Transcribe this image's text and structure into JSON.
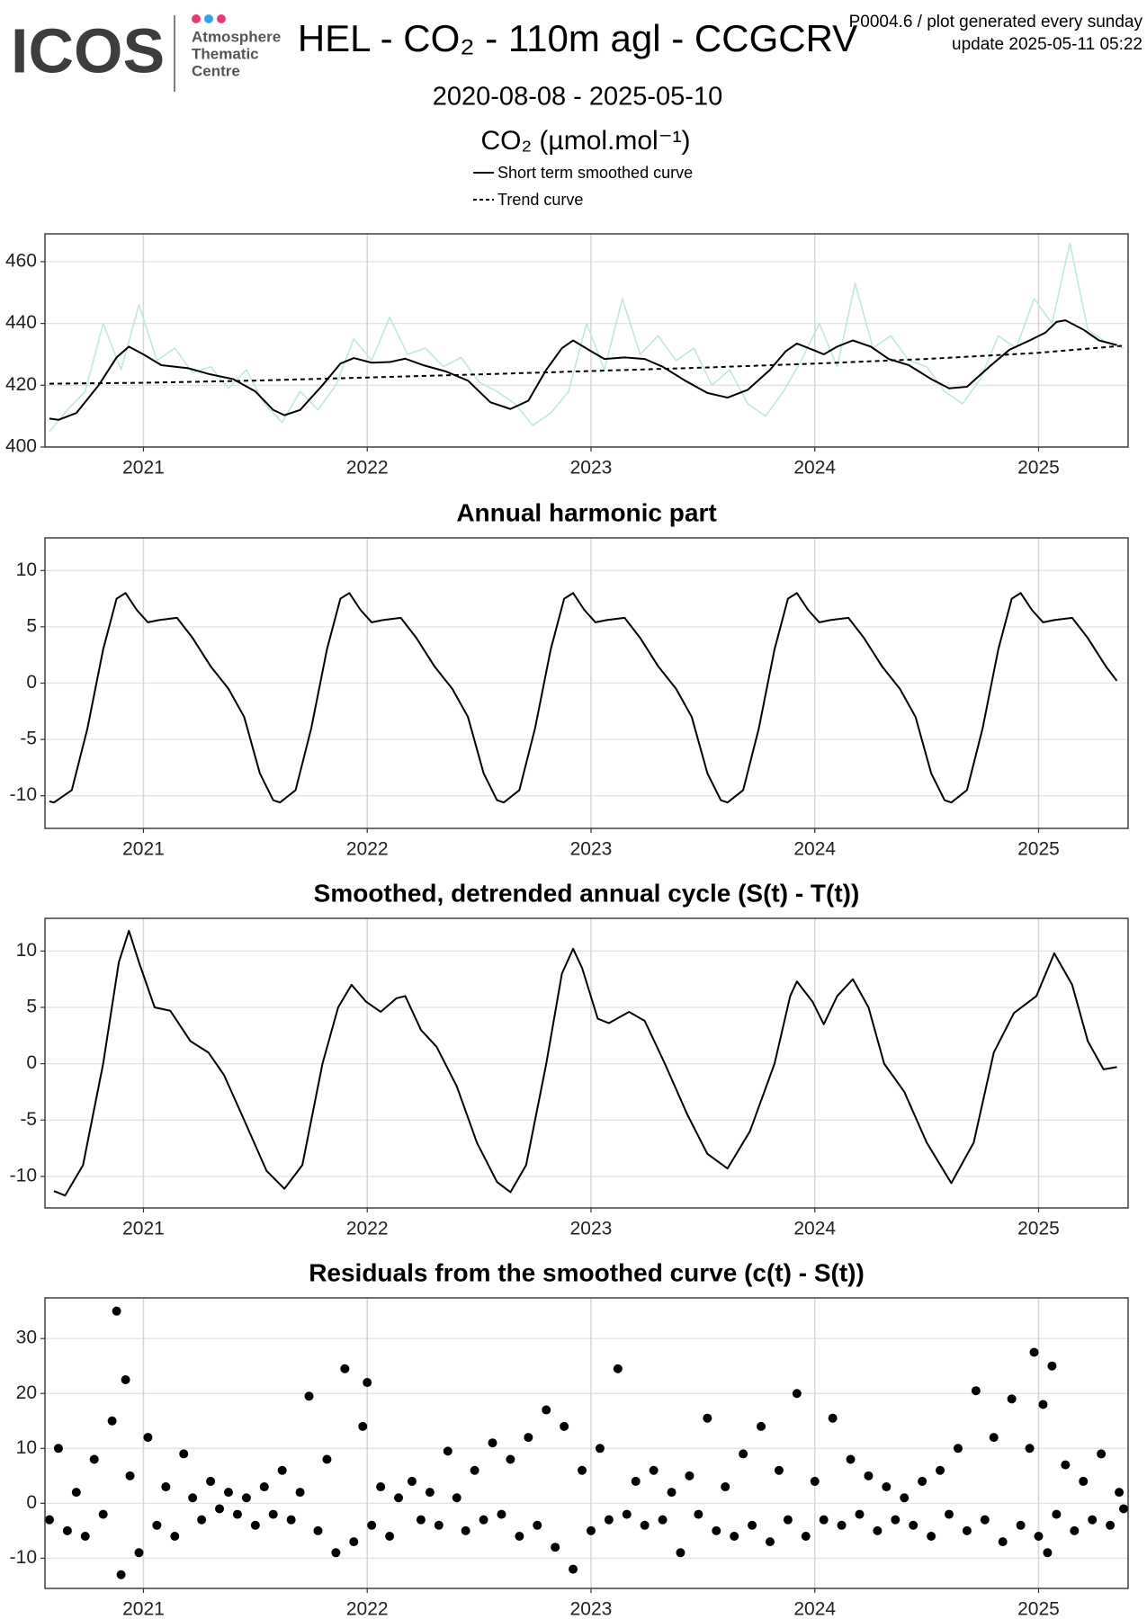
{
  "header": {
    "logo": "ICOS",
    "logo_lines": [
      "Atmosphere",
      "Thematic",
      "Centre"
    ],
    "title": "HEL - CO₂ - 110m agl - CCGCRV",
    "notes": [
      "P0004.6 / plot generated every sunday",
      "update  2025-05-11 05:22"
    ],
    "subtitle": "2020-08-08 - 2025-05-10"
  },
  "chart_data": [
    {
      "type": "line",
      "y_label": "CO₂ (µmol.mol⁻¹)",
      "xlim": [
        2020.56,
        2025.4
      ],
      "xticks": [
        2021,
        2022,
        2023,
        2024,
        2025
      ],
      "ylim": [
        400,
        469
      ],
      "yticks": [
        400,
        420,
        440,
        460
      ],
      "grid": true,
      "legend": "top",
      "series": [
        {
          "color": "#bfe8df",
          "x": [
            2020.58,
            2020.66,
            2020.74,
            2020.82,
            2020.9,
            2020.98,
            2021.06,
            2021.14,
            2021.22,
            2021.3,
            2021.38,
            2021.46,
            2021.54,
            2021.62,
            2021.7,
            2021.78,
            2021.86,
            2021.94,
            2022.02,
            2022.1,
            2022.18,
            2022.26,
            2022.34,
            2022.42,
            2022.5,
            2022.58,
            2022.66,
            2022.74,
            2022.82,
            2022.9,
            2022.98,
            2023.06,
            2023.14,
            2023.22,
            2023.3,
            2023.38,
            2023.46,
            2023.54,
            2023.62,
            2023.7,
            2023.78,
            2023.86,
            2023.94,
            2024.02,
            2024.1,
            2024.18,
            2024.26,
            2024.34,
            2024.42,
            2024.5,
            2024.58,
            2024.66,
            2024.74,
            2024.82,
            2024.9,
            2024.98,
            2025.06,
            2025.14,
            2025.22,
            2025.3,
            2025.38
          ],
          "values": [
            405,
            412,
            418,
            440,
            425,
            446,
            428,
            432,
            424,
            426,
            419,
            425,
            414,
            408,
            418,
            412,
            420,
            435,
            428,
            442,
            430,
            432,
            426,
            429,
            421,
            418,
            414,
            407,
            411,
            418,
            440,
            425,
            448,
            430,
            436,
            428,
            432,
            420,
            425,
            414,
            410,
            418,
            428,
            440,
            426,
            453,
            432,
            436,
            428,
            426,
            418,
            414,
            422,
            436,
            432,
            448,
            440,
            466,
            438,
            434,
            432
          ]
        },
        {
          "name": "Short term smoothed curve",
          "color": "#000000",
          "dashed": false,
          "x": [
            2020.58,
            2020.62,
            2020.7,
            2020.8,
            2020.88,
            2020.935,
            2021.0,
            2021.08,
            2021.2,
            2021.3,
            2021.4,
            2021.5,
            2021.58,
            2021.63,
            2021.7,
            2021.8,
            2021.88,
            2021.94,
            2022.02,
            2022.1,
            2022.17,
            2022.25,
            2022.35,
            2022.45,
            2022.55,
            2022.64,
            2022.72,
            2022.8,
            2022.87,
            2022.92,
            2023.0,
            2023.06,
            2023.15,
            2023.24,
            2023.32,
            2023.42,
            2023.52,
            2023.61,
            2023.7,
            2023.8,
            2023.87,
            2023.92,
            2023.99,
            2024.04,
            2024.1,
            2024.17,
            2024.25,
            2024.33,
            2024.42,
            2024.52,
            2024.6,
            2024.68,
            2024.78,
            2024.87,
            2024.96,
            2025.03,
            2025.08,
            2025.12,
            2025.2,
            2025.27,
            2025.35
          ],
          "values": [
            409.2,
            408.8,
            411,
            420,
            429,
            432.5,
            430,
            426.5,
            425.5,
            423.5,
            422,
            418,
            412,
            410.3,
            412,
            420,
            427,
            428.8,
            427.3,
            427.5,
            428.6,
            426.5,
            424.5,
            421.5,
            414.5,
            412.3,
            415,
            425,
            432,
            434.5,
            431,
            428.5,
            429,
            428.5,
            426,
            421.5,
            417.5,
            416,
            418.5,
            425,
            431,
            433.5,
            431.5,
            430,
            432.5,
            434.5,
            432.5,
            428.5,
            426.5,
            422,
            419,
            419.5,
            426,
            431.5,
            434.5,
            437,
            440.5,
            441,
            438,
            434.5,
            433
          ]
        },
        {
          "name": "Trend curve",
          "color": "#000000",
          "dashed": true,
          "x": [
            2020.58,
            2021,
            2021.5,
            2022,
            2022.5,
            2023,
            2023.5,
            2024,
            2024.5,
            2025,
            2025.38
          ],
          "values": [
            420.5,
            420.8,
            421.5,
            422.5,
            423.5,
            424.6,
            425.7,
            427,
            428.5,
            430.5,
            432.8
          ]
        }
      ]
    },
    {
      "type": "line",
      "title": "Annual harmonic part",
      "xlim": [
        2020.56,
        2025.4
      ],
      "xticks": [
        2021,
        2022,
        2023,
        2024,
        2025
      ],
      "ylim": [
        -12.9,
        12.9
      ],
      "yticks": [
        -10,
        -5,
        0,
        5,
        10
      ],
      "grid": true,
      "series": [
        {
          "color": "#000000",
          "x": [
            2020.58,
            2020.6,
            2020.68,
            2020.75,
            2020.82,
            2020.88,
            2020.92,
            2020.97,
            2021.02,
            2021.07,
            2021.15,
            2021.22,
            2021.3,
            2021.38,
            2021.45,
            2021.52,
            2021.58,
            2021.61,
            2021.68,
            2021.75,
            2021.82,
            2021.88,
            2021.92,
            2021.97,
            2022.02,
            2022.07,
            2022.15,
            2022.22,
            2022.3,
            2022.38,
            2022.45,
            2022.52,
            2022.58,
            2022.61,
            2022.68,
            2022.75,
            2022.82,
            2022.88,
            2022.92,
            2022.97,
            2023.02,
            2023.07,
            2023.15,
            2023.22,
            2023.3,
            2023.38,
            2023.45,
            2023.52,
            2023.58,
            2023.61,
            2023.68,
            2023.75,
            2023.82,
            2023.88,
            2023.92,
            2023.97,
            2024.02,
            2024.07,
            2024.15,
            2024.22,
            2024.3,
            2024.38,
            2024.45,
            2024.52,
            2024.58,
            2024.61,
            2024.68,
            2024.75,
            2024.82,
            2024.88,
            2024.92,
            2024.97,
            2025.02,
            2025.07,
            2025.15,
            2025.22,
            2025.3,
            2025.35
          ],
          "values": [
            -10.5,
            -10.6,
            -9.5,
            -4,
            3,
            7.5,
            8,
            6.5,
            5.4,
            5.6,
            5.8,
            4,
            1.5,
            -0.5,
            -3,
            -8,
            -10.4,
            -10.6,
            -9.5,
            -4,
            3,
            7.5,
            8,
            6.5,
            5.4,
            5.6,
            5.8,
            4,
            1.5,
            -0.5,
            -3,
            -8,
            -10.4,
            -10.6,
            -9.5,
            -4,
            3,
            7.5,
            8,
            6.5,
            5.4,
            5.6,
            5.8,
            4,
            1.5,
            -0.5,
            -3,
            -8,
            -10.4,
            -10.6,
            -9.5,
            -4,
            3,
            7.5,
            8,
            6.5,
            5.4,
            5.6,
            5.8,
            4,
            1.5,
            -0.5,
            -3,
            -8,
            -10.4,
            -10.6,
            -9.5,
            -4,
            3,
            7.5,
            8,
            6.5,
            5.4,
            5.6,
            5.8,
            4,
            1.5,
            0.2
          ]
        }
      ]
    },
    {
      "type": "line",
      "title": "Smoothed, detrended annual cycle (S(t) - T(t))",
      "xlim": [
        2020.56,
        2025.4
      ],
      "xticks": [
        2021,
        2022,
        2023,
        2024,
        2025
      ],
      "ylim": [
        -12.8,
        12.9
      ],
      "yticks": [
        -10,
        -5,
        0,
        5,
        10
      ],
      "grid": true,
      "series": [
        {
          "color": "#000000",
          "x": [
            2020.6,
            2020.65,
            2020.73,
            2020.82,
            2020.89,
            2020.935,
            2020.98,
            2021.05,
            2021.12,
            2021.21,
            2021.29,
            2021.36,
            2021.45,
            2021.55,
            2021.63,
            2021.71,
            2021.8,
            2021.87,
            2021.93,
            2021.995,
            2022.06,
            2022.13,
            2022.17,
            2022.24,
            2022.31,
            2022.4,
            2022.49,
            2022.58,
            2022.64,
            2022.71,
            2022.8,
            2022.87,
            2022.92,
            2022.96,
            2023.03,
            2023.08,
            2023.17,
            2023.24,
            2023.33,
            2023.43,
            2023.52,
            2023.61,
            2023.71,
            2023.82,
            2023.89,
            2023.92,
            2023.99,
            2024.04,
            2024.1,
            2024.17,
            2024.24,
            2024.31,
            2024.4,
            2024.5,
            2024.61,
            2024.71,
            2024.8,
            2024.89,
            2024.99,
            2025.07,
            2025.15,
            2025.22,
            2025.29,
            2025.35
          ],
          "values": [
            -11.3,
            -11.7,
            -9,
            0,
            9,
            11.8,
            9,
            5,
            4.7,
            2,
            1,
            -1,
            -5,
            -9.5,
            -11.1,
            -9,
            0,
            5,
            7,
            5.5,
            4.6,
            5.8,
            6,
            3,
            1.5,
            -2,
            -7,
            -10.5,
            -11.4,
            -9,
            0,
            8,
            10.2,
            8.5,
            4,
            3.6,
            4.6,
            3.8,
            0,
            -4.5,
            -8,
            -9.3,
            -6,
            0,
            6,
            7.3,
            5.5,
            3.5,
            6,
            7.5,
            5,
            0,
            -2.5,
            -7,
            -10.6,
            -7,
            1,
            4.5,
            6,
            9.8,
            7,
            2,
            -0.5,
            -0.3
          ]
        }
      ]
    },
    {
      "type": "scatter",
      "title": "Residuals from the smoothed curve (c(t) - S(t))",
      "xlim": [
        2020.56,
        2025.4
      ],
      "xticks": [
        2021,
        2022,
        2023,
        2024,
        2025
      ],
      "ylim": [
        -15.5,
        37.4
      ],
      "yticks": [
        -10,
        0,
        10,
        20,
        30
      ],
      "grid": true,
      "color": "#000000",
      "x": [
        2020.58,
        2020.62,
        2020.66,
        2020.7,
        2020.74,
        2020.78,
        2020.82,
        2020.86,
        2020.88,
        2020.9,
        2020.92,
        2020.94,
        2020.98,
        2021.02,
        2021.06,
        2021.1,
        2021.14,
        2021.18,
        2021.22,
        2021.26,
        2021.3,
        2021.34,
        2021.38,
        2021.42,
        2021.46,
        2021.5,
        2021.54,
        2021.58,
        2021.62,
        2021.66,
        2021.7,
        2021.74,
        2021.78,
        2021.82,
        2021.86,
        2021.9,
        2021.94,
        2021.98,
        2022.0,
        2022.02,
        2022.06,
        2022.1,
        2022.14,
        2022.2,
        2022.24,
        2022.28,
        2022.32,
        2022.36,
        2022.4,
        2022.44,
        2022.48,
        2022.52,
        2022.56,
        2022.6,
        2022.64,
        2022.68,
        2022.72,
        2022.76,
        2022.8,
        2022.84,
        2022.88,
        2022.92,
        2022.96,
        2023.0,
        2023.04,
        2023.08,
        2023.12,
        2023.16,
        2023.2,
        2023.24,
        2023.28,
        2023.32,
        2023.36,
        2023.4,
        2023.44,
        2023.48,
        2023.52,
        2023.56,
        2023.6,
        2023.64,
        2023.68,
        2023.72,
        2023.76,
        2023.8,
        2023.84,
        2023.88,
        2023.92,
        2023.96,
        2024.0,
        2024.04,
        2024.08,
        2024.12,
        2024.16,
        2024.2,
        2024.24,
        2024.28,
        2024.32,
        2024.36,
        2024.4,
        2024.44,
        2024.48,
        2024.52,
        2024.56,
        2024.6,
        2024.64,
        2024.68,
        2024.72,
        2024.76,
        2024.8,
        2024.84,
        2024.88,
        2024.92,
        2024.96,
        2024.98,
        2025.0,
        2025.02,
        2025.04,
        2025.06,
        2025.08,
        2025.12,
        2025.16,
        2025.2,
        2025.24,
        2025.28,
        2025.32,
        2025.36,
        2025.38
      ],
      "values": [
        -3,
        10,
        -5,
        2,
        -6,
        8,
        -2,
        15,
        35,
        -13,
        22.5,
        5,
        -9,
        12,
        -4,
        3,
        -6,
        9,
        1,
        -3,
        4,
        -1,
        2,
        -2,
        1,
        -4,
        3,
        -2,
        6,
        -3,
        2,
        19.5,
        -5,
        8,
        -9,
        24.5,
        -7,
        14,
        22,
        -4,
        3,
        -6,
        1,
        4,
        -3,
        2,
        -4,
        9.5,
        1,
        -5,
        6,
        -3,
        11,
        -2,
        8,
        -6,
        12,
        -4,
        17,
        -8,
        14,
        -12,
        6,
        -5,
        10,
        -3,
        24.5,
        -2,
        4,
        -4,
        6,
        -3,
        2,
        -9,
        5,
        -2,
        15.5,
        -5,
        3,
        -6,
        9,
        -4,
        14,
        -7,
        6,
        -3,
        20,
        -6,
        4,
        -3,
        15.5,
        -4,
        8,
        -2,
        5,
        -5,
        3,
        -3,
        1,
        -4,
        4,
        -6,
        6,
        -2,
        10,
        -5,
        20.5,
        -3,
        12,
        -7,
        19,
        -4,
        10,
        27.5,
        -6,
        18,
        -9,
        25,
        -2,
        7,
        -5,
        4,
        -3,
        9,
        -4,
        2,
        -1
      ]
    }
  ]
}
